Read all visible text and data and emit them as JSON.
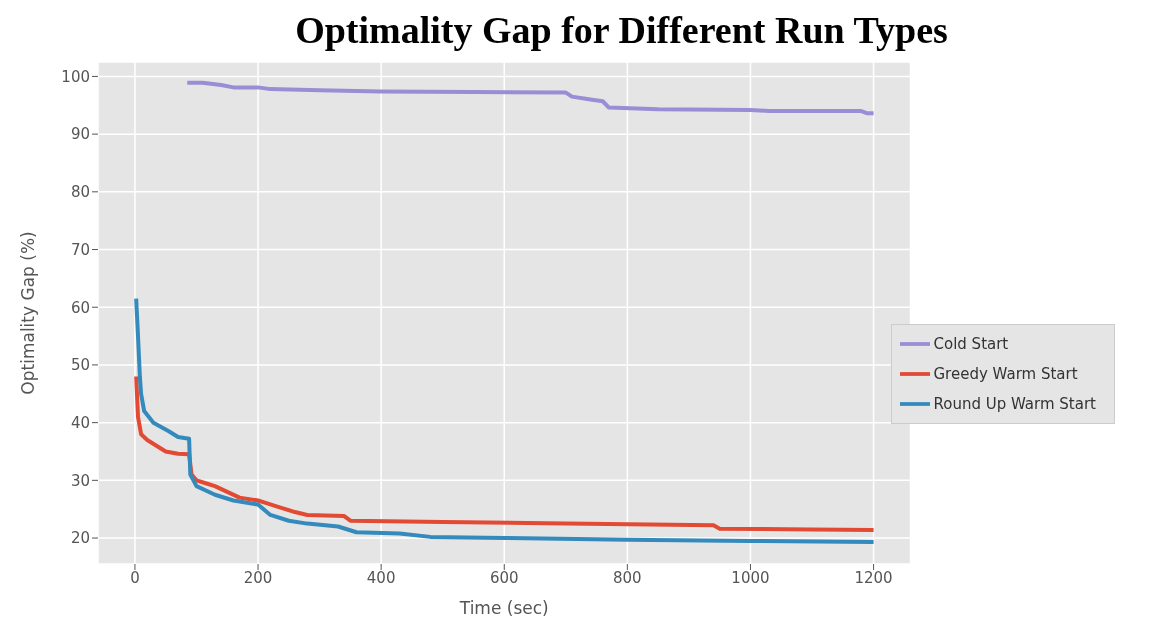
{
  "chart_data": {
    "type": "line",
    "title": "Optimality Gap for Different Run Types",
    "xlabel": "Time (sec)",
    "ylabel": "Optimality Gap (%)",
    "xlim": [
      -60,
      1260
    ],
    "ylim": [
      15.5,
      102.5
    ],
    "xticks": [
      0,
      200,
      400,
      600,
      800,
      1000,
      1200
    ],
    "yticks": [
      20,
      30,
      40,
      50,
      60,
      70,
      80,
      90,
      100
    ],
    "grid": true,
    "legend": "right",
    "line_style": "solid",
    "marker": "none",
    "series": [
      {
        "name": "Greedy Warm Start",
        "color": "#e24a33",
        "x": [
          2,
          5,
          10,
          20,
          35,
          50,
          70,
          88,
          92,
          100,
          115,
          130,
          150,
          170,
          200,
          215,
          230,
          260,
          280,
          340,
          350,
          500,
          700,
          940,
          950,
          1100,
          1200
        ],
        "values": [
          48,
          41,
          38,
          37,
          36,
          35,
          34.6,
          34.5,
          31,
          30,
          29.5,
          29,
          28,
          27,
          26.5,
          26,
          25.5,
          24.5,
          24,
          23.8,
          23,
          22.8,
          22.5,
          22.2,
          21.6,
          21.5,
          21.4
        ]
      },
      {
        "name": "Round Up Warm Start",
        "color": "#348abd",
        "x": [
          2,
          5,
          8,
          10,
          15,
          30,
          55,
          70,
          88,
          90,
          100,
          130,
          160,
          200,
          220,
          250,
          280,
          330,
          360,
          430,
          480,
          600,
          800,
          1000,
          1200
        ],
        "values": [
          61.5,
          55,
          48,
          45,
          42,
          40,
          38.5,
          37.5,
          37.2,
          31,
          29,
          27.5,
          26.5,
          25.8,
          24,
          23,
          22.5,
          22,
          21,
          20.8,
          20.2,
          20,
          19.7,
          19.5,
          19.3
        ]
      },
      {
        "name": "Cold Start",
        "color": "#988ed5",
        "x": [
          85,
          110,
          140,
          160,
          200,
          220,
          300,
          400,
          550,
          700,
          710,
          740,
          760,
          770,
          850,
          1000,
          1030,
          1180,
          1190,
          1200
        ],
        "values": [
          98.9,
          98.9,
          98.5,
          98.1,
          98.1,
          97.8,
          97.6,
          97.4,
          97.3,
          97.2,
          96.5,
          96,
          95.7,
          94.6,
          94.3,
          94.2,
          94,
          94,
          93.6,
          93.6
        ]
      }
    ]
  }
}
